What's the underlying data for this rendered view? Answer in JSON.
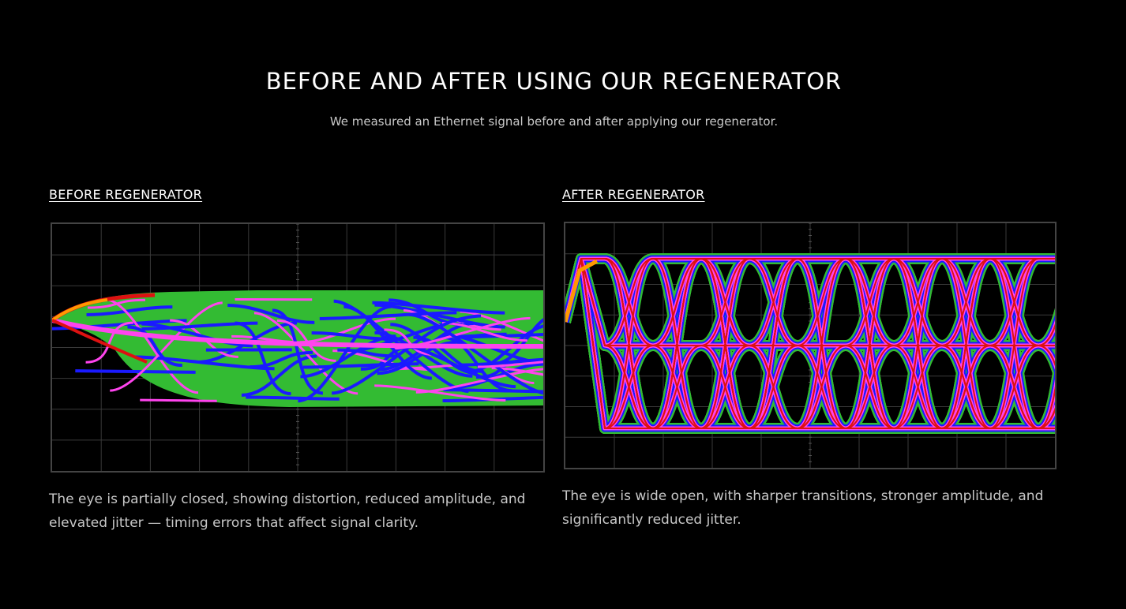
{
  "header": {
    "title": "BEFORE AND AFTER USING OUR REGENERATOR",
    "subtitle": "We measured an Ethernet signal before and after applying our regenerator."
  },
  "before": {
    "heading": "BEFORE REGENERATOR",
    "image": "eye diagram before regenerator",
    "description": "The eye is partially closed, showing distortion, reduced amplitude, and elevated jitter — timing errors that affect signal clarity."
  },
  "after": {
    "heading": "AFTER REGENERATOR",
    "image": "eye diagram after regenerator",
    "description": "The eye is wide open, with sharper transitions, stronger amplitude, and significantly reduced jitter."
  },
  "colors": {
    "background": "#000000",
    "persistence_low": "#33bb33",
    "persistence_mid": "#1a1aff",
    "persistence_high": "#ff44ee",
    "persistence_peak": "#dd1111",
    "persistence_max": "#ff9900",
    "grid": "#3a3a3a"
  }
}
